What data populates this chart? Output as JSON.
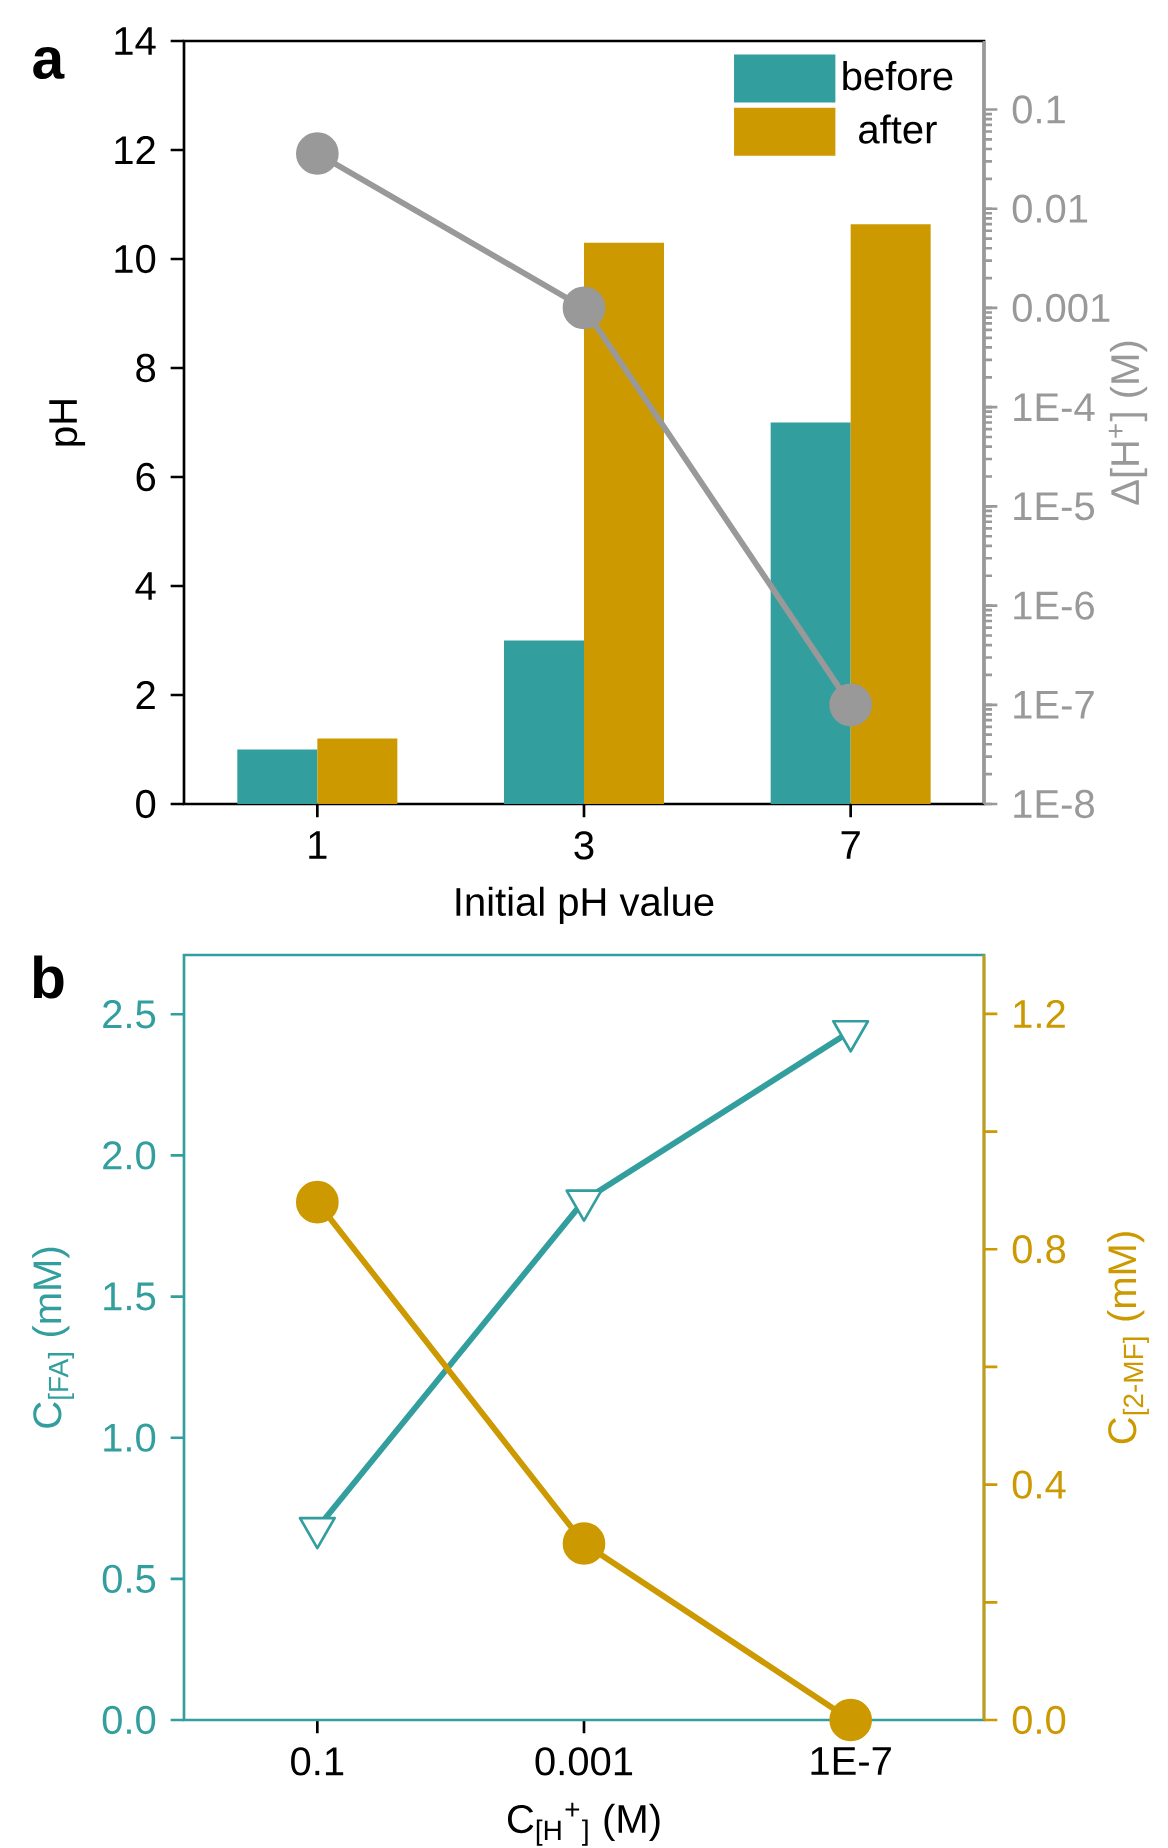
{
  "chart_data": [
    {
      "type": "bar",
      "categories": [
        "1",
        "3",
        "7"
      ],
      "xlabel": "Initial pH value",
      "ylabel": "pH",
      "y2label": "Δ[H$^{+}$] (M)",
      "ylim": [
        0,
        14
      ],
      "yticks": [
        0,
        2,
        4,
        6,
        8,
        10,
        12,
        14
      ],
      "y2lim": [
        1e-08,
        0.49
      ],
      "y2ticks": [
        {
          "value": 1e-08,
          "label": "1E-8"
        },
        {
          "value": 1e-07,
          "label": "1E-7"
        },
        {
          "value": 1e-06,
          "label": "1E-6"
        },
        {
          "value": 1e-05,
          "label": "1E-5"
        },
        {
          "value": 0.0001,
          "label": "1E-4"
        },
        {
          "value": 0.001,
          "label": "0.001"
        },
        {
          "value": 0.01,
          "label": "0.01"
        },
        {
          "value": 0.1,
          "label": "0.1"
        }
      ],
      "log": "y2",
      "legend": "top right",
      "annotations": [
        "**a**"
      ],
      "series": [
        {
          "name": "before",
          "color": "#339e9e",
          "values": [
            1.0,
            3.0,
            7.0
          ]
        },
        {
          "name": "after",
          "color": "#cc9900",
          "values": [
            1.2,
            10.3,
            10.64
          ]
        },
        {
          "type": "line",
          "axis": "y2",
          "color": "#999999",
          "marker": "circle",
          "values": [
            0.036,
            0.001,
            1e-07
          ]
        }
      ]
    },
    {
      "type": "line",
      "categories": [
        "0.1",
        "0.001",
        "1E-7"
      ],
      "xlabel": "C$_{[H}$$^{+}$$_{]}$ (M)",
      "ylabel": "C$_{[FA]}$ (mM)",
      "y2label": "C$_{[2-MF]}$ (mM)",
      "ylim": [
        0,
        2.71
      ],
      "yticks": [
        {
          "value": 0,
          "label": "0.0"
        },
        {
          "value": 0.5,
          "label": "0.5"
        },
        {
          "value": 1,
          "label": "1.0"
        },
        {
          "value": 1.5,
          "label": "1.5"
        },
        {
          "value": 2,
          "label": "2.0"
        },
        {
          "value": 2.5,
          "label": "2.5"
        }
      ],
      "y2lim": [
        0,
        1.3
      ],
      "y2ticks": [
        {
          "value": 0,
          "label": "0.0"
        },
        {
          "value": 0.2,
          "label": null
        },
        {
          "value": 0.4,
          "label": "0.4"
        },
        {
          "value": 0.6,
          "label": null
        },
        {
          "value": 0.8,
          "label": "0.8"
        },
        {
          "value": 1.0,
          "label": null
        },
        {
          "value": 1.2,
          "label": "1.2"
        }
      ],
      "annotations": [
        "**b**"
      ],
      "series": [
        {
          "color": "#339e9e",
          "marker": "triangle",
          "values": [
            0.68,
            1.84,
            2.44
          ]
        },
        {
          "axis": "y2",
          "color": "#cc9900",
          "marker": "circle",
          "values": [
            0.88,
            0.3,
            0.0
          ]
        }
      ]
    }
  ]
}
